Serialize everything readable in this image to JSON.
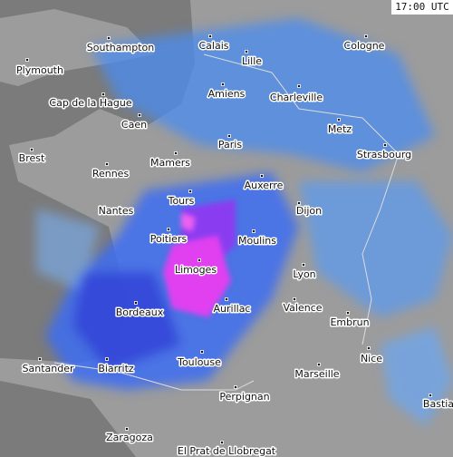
{
  "time_label": "17:00 UTC",
  "cities": [
    "Southampton",
    "Calais",
    "Cologne",
    "Plymouth",
    "Lille",
    "Amiens",
    "Charleville",
    "Cap de la Hague",
    "Caen",
    "Metz",
    "Paris",
    "Brest",
    "Strasbourg",
    "Mamers",
    "Rennes",
    "Auxerre",
    "Tours",
    "Nantes",
    "Dijon",
    "Poitiers",
    "Moulins",
    "Limoges",
    "Lyon",
    "Bordeaux",
    "Aurillac",
    "Valence",
    "Embrun",
    "Nice",
    "Santander",
    "Biarritz",
    "Toulouse",
    "Marseille",
    "Bastia",
    "Perpignan",
    "Zaragoza",
    "El Prat de Llobregat"
  ]
}
